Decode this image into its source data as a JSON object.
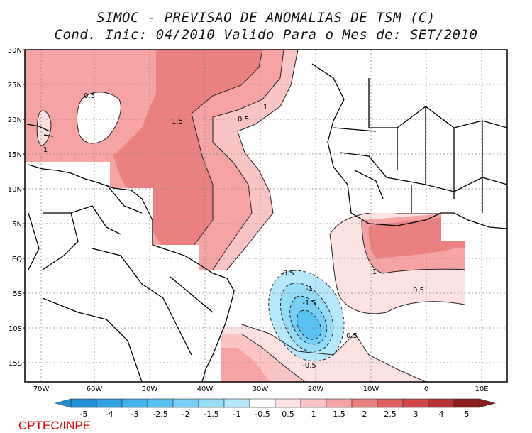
{
  "title_line1": "SIMOC - PREVISAO DE ANOMALIAS DE TSM (C)",
  "title_line2": "Cond. Inic: 04/2010   Valido Para o Mes de: SET/2010",
  "footer": "CPTEC/INPE",
  "lat_labels": [
    "30N",
    "25N",
    "20N",
    "15N",
    "10N",
    "5N",
    "EQ",
    "5S",
    "10S",
    "15S"
  ],
  "lon_labels": [
    "70W",
    "60W",
    "50W",
    "40W",
    "30W",
    "20W",
    "10W",
    "0",
    "10E"
  ],
  "contour_labels": [
    "0.5",
    "1.5",
    "1",
    "0.5",
    "1",
    "-0.5",
    "-1",
    "-1.5",
    "-0.5",
    "1",
    "0.5",
    "0.5"
  ],
  "colorbar": {
    "labels": [
      "-5",
      "-4",
      "-3",
      "-2.5",
      "-2",
      "-1.5",
      "-1",
      "-0.5",
      "0.5",
      "1",
      "1.5",
      "2",
      "2.5",
      "3",
      "4",
      "5"
    ],
    "colors": [
      "#1e90d8",
      "#2ea4e4",
      "#40b4ee",
      "#58c2f2",
      "#78d0f6",
      "#96dcf8",
      "#b6e8fb",
      "#ffffff",
      "#fde2e2",
      "#fbc4c4",
      "#f5a3a3",
      "#ea8080",
      "#df5f5f",
      "#d14747",
      "#b83232",
      "#8c1e1e"
    ]
  },
  "map_colors": {
    "anom_0_5": "#fde2e2",
    "anom_1": "#fbc4c4",
    "anom_1_5": "#f5a3a3",
    "anom_2": "#ea8080",
    "neg_0_5": "#b6e8fb",
    "neg_1": "#96dcf8",
    "neg_1_5": "#78d0f6",
    "neg_2": "#58c2f2"
  }
}
